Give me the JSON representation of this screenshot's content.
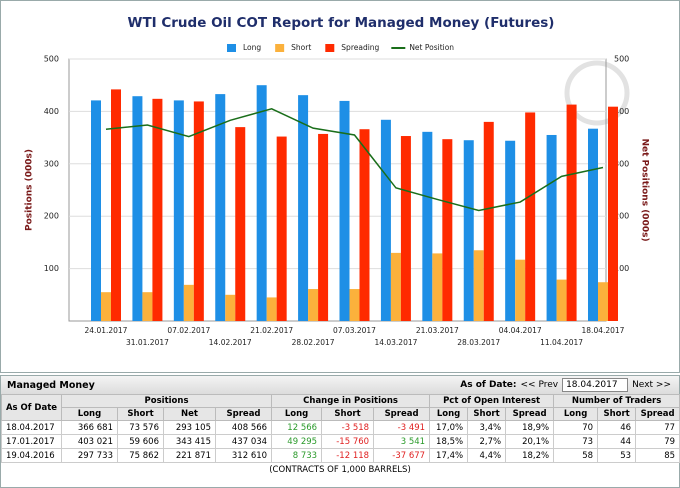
{
  "chart_data": {
    "type": "bar",
    "title": "WTI Crude Oil COT Report for Managed Money (Futures)",
    "y_label": "Positions (000s)",
    "y2_label": "Net Positions (000s)",
    "categories": [
      "24.01.2017",
      "31.01.2017",
      "07.02.2017",
      "14.02.2017",
      "21.02.2017",
      "28.02.2017",
      "07.03.2017",
      "14.03.2017",
      "21.03.2017",
      "28.03.2017",
      "04.04.2017",
      "11.04.2017",
      "18.04.2017"
    ],
    "series": [
      {
        "name": "Long",
        "color": "#1e8fe6",
        "values": [
          421,
          429,
          421,
          433,
          450,
          431,
          420,
          384,
          361,
          345,
          344,
          355,
          367
        ]
      },
      {
        "name": "Short",
        "color": "#fbb13c",
        "values": [
          55,
          55,
          69,
          50,
          45,
          61,
          61,
          130,
          129,
          135,
          117,
          79,
          74
        ]
      },
      {
        "name": "Spreading",
        "color": "#ff2a00",
        "values": [
          442,
          424,
          419,
          370,
          352,
          357,
          366,
          353,
          347,
          380,
          398,
          413,
          409
        ]
      },
      {
        "name": "Net Position",
        "color": "#1a6e1a",
        "type": "line",
        "axis": "y2",
        "values": [
          366,
          374,
          352,
          383,
          405,
          368,
          355,
          254,
          232,
          211,
          227,
          276,
          293
        ]
      }
    ],
    "ylim": [
      0,
      500
    ],
    "yticks": [
      100,
      200,
      300,
      400,
      500
    ],
    "y2lim": [
      0,
      500
    ],
    "y2ticks": [
      100,
      200,
      300,
      400,
      500
    ],
    "grid": true
  },
  "table": {
    "title": "Managed Money",
    "as_of_label": "As of Date:",
    "prev": "<< Prev",
    "selected_date": "18.04.2017",
    "next": "Next >>",
    "group_headers": [
      "As Of Date",
      "Positions",
      "Change in Positions",
      "Pct of Open Interest",
      "Number of Traders"
    ],
    "sub_headers": [
      "Long",
      "Short",
      "Net",
      "Spread",
      "Long",
      "Short",
      "Spread",
      "Long",
      "Short",
      "Spread",
      "Long",
      "Short",
      "Spread"
    ],
    "rows": [
      [
        "18.04.2017",
        "366 681",
        "73 576",
        "293 105",
        "408 566",
        "12 566",
        "-3 518",
        "-3 491",
        "17,0%",
        "3,4%",
        "18,9%",
        "70",
        "46",
        "77"
      ],
      [
        "17.01.2017",
        "403 021",
        "59 606",
        "343 415",
        "437 034",
        "49 295",
        "-15 760",
        "3 541",
        "18,5%",
        "2,7%",
        "20,1%",
        "73",
        "44",
        "79"
      ],
      [
        "19.04.2016",
        "297 733",
        "75 862",
        "221 871",
        "312 610",
        "8 733",
        "-12 118",
        "-37 677",
        "17,4%",
        "4,4%",
        "18,2%",
        "58",
        "53",
        "85"
      ]
    ],
    "footnote": "(CONTRACTS OF 1,000 BARRELS)"
  }
}
